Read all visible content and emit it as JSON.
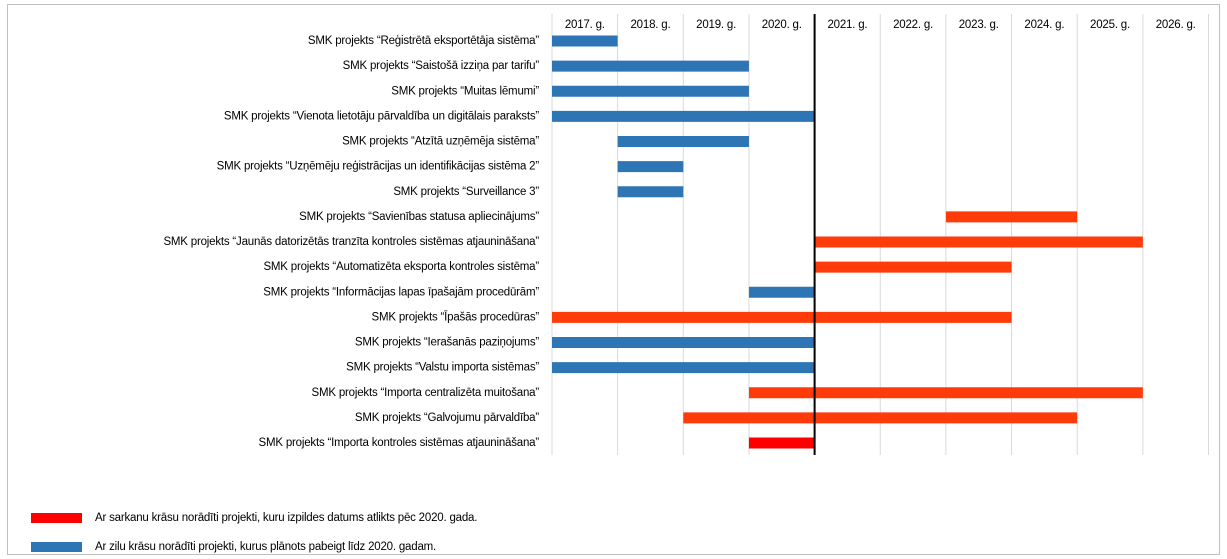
{
  "chart_data": {
    "type": "gantt",
    "tasks": [
      {
        "name": "SMK projekts “Reģistrētā eksportētāja sistēma”",
        "start": 2017,
        "end": 2018,
        "color": "#2e75b6"
      },
      {
        "name": "SMK projekts “Saistošā izziņa par tarifu”",
        "start": 2017,
        "end": 2020,
        "color": "#2e75b6"
      },
      {
        "name": "SMK projekts “Muitas lēmumi”",
        "start": 2017,
        "end": 2020,
        "color": "#2e75b6"
      },
      {
        "name": "SMK projekts “Vienota lietotāju pārvaldība un digitālais paraksts”",
        "start": 2017,
        "end": 2021,
        "color": "#2e75b6"
      },
      {
        "name": "SMK projekts “Atzītā uzņēmēja sistēma”",
        "start": 2018,
        "end": 2020,
        "color": "#2e75b6"
      },
      {
        "name": "SMK projekts “Uzņēmēju reģistrācijas un identifikācijas sistēma 2”",
        "start": 2018,
        "end": 2019,
        "color": "#2e75b6"
      },
      {
        "name": "SMK projekts “Surveillance 3”",
        "start": 2018,
        "end": 2019,
        "color": "#2e75b6"
      },
      {
        "name": "SMK projekts “Savienības statusa apliecinājums”",
        "start": 2023,
        "end": 2025,
        "color": "#ff3b0a"
      },
      {
        "name": "SMK projekts “Jaunās datorizētās tranzīta kontroles sistēmas atjaunināšana”",
        "start": 2021,
        "end": 2026,
        "color": "#ff3b0a"
      },
      {
        "name": "SMK projekts “Automatizēta eksporta kontroles sistēma”",
        "start": 2021,
        "end": 2024,
        "color": "#ff3b0a"
      },
      {
        "name": "SMK projekts “Informācijas lapas īpašajām procedūrām”",
        "start": 2020,
        "end": 2021,
        "color": "#2e75b6"
      },
      {
        "name": "SMK projekts “Īpašās procedūras”",
        "start": 2017,
        "end": 2024,
        "color": "#ff3b0a"
      },
      {
        "name": "SMK projekts “Ierašanās paziņojums”",
        "start": 2017,
        "end": 2021,
        "color": "#2e75b6"
      },
      {
        "name": "SMK projekts “Valstu importa sistēmas”",
        "start": 2017,
        "end": 2021,
        "color": "#2e75b6"
      },
      {
        "name": "SMK projekts “Importa centralizēta muitošana”",
        "start": 2020,
        "end": 2026,
        "color": "#ff3b0a"
      },
      {
        "name": "SMK projekts “Galvojumu pārvaldība”",
        "start": 2019,
        "end": 2025,
        "color": "#ff3b0a"
      },
      {
        "name": "SMK projekts “Importa kontroles sistēmas atjaunināšana”",
        "start": 2020,
        "end": 2021,
        "color": "#ff0000"
      }
    ],
    "xlim": [
      2017,
      2027
    ],
    "xticks": [
      {
        "value": 2017,
        "label": "2017. g."
      },
      {
        "value": 2018,
        "label": "2018. g."
      },
      {
        "value": 2019,
        "label": "2019. g."
      },
      {
        "value": 2020,
        "label": "2020. g."
      },
      {
        "value": 2021,
        "label": "2021. g."
      },
      {
        "value": 2022,
        "label": "2022. g."
      },
      {
        "value": 2023,
        "label": "2023. g."
      },
      {
        "value": 2024,
        "label": "2024. g."
      },
      {
        "value": 2025,
        "label": "2025. g."
      },
      {
        "value": 2026,
        "label": "2026. g."
      }
    ],
    "grid": true,
    "reference_line": 2021,
    "legend": [
      {
        "label": "Ar sarkanu krāsu norādīti projekti, kuru izpildes datums atlikts pēc 2020. gada.",
        "color": "#ff0000"
      },
      {
        "label": "Ar zilu krāsu norādīti projekti, kurus plānots pabeigt līdz 2020. gadam.",
        "color": "#2e75b6"
      }
    ]
  }
}
